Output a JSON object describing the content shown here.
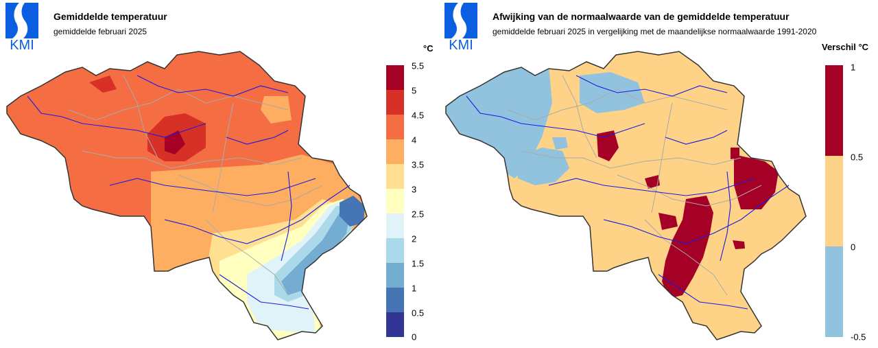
{
  "colors": {
    "border": "#333333",
    "province_border": "#aaaaaa",
    "river": "#1a1ae6",
    "logo": "#0a5fe0"
  },
  "left": {
    "logo_text": "KMI",
    "title": "Gemiddelde temperatuur",
    "subtitle": "gemiddelde februari 2025",
    "legend_unit": "°C",
    "legend_ticks": [
      "5.5",
      "5",
      "4.5",
      "4",
      "3.5",
      "3",
      "2.5",
      "2",
      "1.5",
      "1",
      "0.5",
      "0"
    ],
    "legend_colors": [
      "#a50026",
      "#d73027",
      "#f46d43",
      "#fdae61",
      "#fee090",
      "#ffffbf",
      "#e0f3f8",
      "#abd9e9",
      "#74add1",
      "#4575b4",
      "#313695"
    ]
  },
  "right": {
    "logo_text": "KMI",
    "title": "Afwijking van de normaalwaarde van de gemiddelde temperatuur",
    "subtitle": "gemiddelde februari 2025 in vergelijking met de maandelijkse normaalwaarde 1991-2020",
    "legend_unit": "Verschil °C",
    "legend_ticks": [
      "1",
      "0.5",
      "0",
      "-0.5"
    ],
    "legend_colors": [
      "#a50026",
      "#fed287",
      "#91c3df"
    ]
  }
}
